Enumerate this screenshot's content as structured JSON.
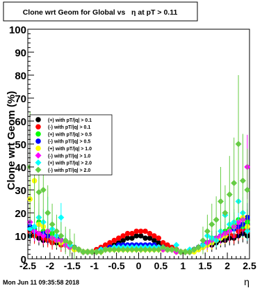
{
  "title": "Clone wrt Geom for Global vs   η at pT > 0.11",
  "timestamp": "Mon Jun 11 09:35:58 2018",
  "colors": {
    "black": "#000000",
    "red": "#ff0000",
    "green": "#00ff00",
    "blue": "#0000ff",
    "yellow": "#ffff00",
    "magenta": "#ff00ff",
    "cyan": "#00ffff",
    "lightgreen": "#66cc44",
    "errorbar_lightgreen": "#7ed957"
  },
  "chart_data": {
    "type": "scatter",
    "xlabel": "η",
    "ylabel": "Clone wrt Geom (%)",
    "xlim": [
      -2.5,
      2.5
    ],
    "ylim": [
      0,
      100
    ],
    "xticks": [
      -2.5,
      -2,
      -1.5,
      -1,
      -0.5,
      0,
      0.5,
      1,
      1.5,
      2,
      2.5
    ],
    "xtick_labels": [
      "-2.5",
      "-2",
      "-1.5",
      "-1",
      "-0.5",
      "0",
      "0.5",
      "1",
      "1.5",
      "2",
      "2.5"
    ],
    "yticks": [
      0,
      10,
      20,
      30,
      40,
      50,
      60,
      70,
      80,
      90,
      100
    ],
    "ytick_labels": [
      "0",
      "10",
      "20",
      "30",
      "40",
      "50",
      "60",
      "70",
      "80",
      "90",
      "100"
    ],
    "grid": false,
    "legend_position": "left-middle",
    "series": [
      {
        "name": "(+) with pT/|q| > 0.1",
        "color": "#000000",
        "marker": "circle",
        "x": [
          -2.45,
          -2.35,
          -2.25,
          -2.15,
          -2.05,
          -1.95,
          -1.85,
          -1.75,
          -1.65,
          -1.55,
          -1.45,
          -1.35,
          -1.25,
          -1.15,
          -1.05,
          -0.95,
          -0.85,
          -0.75,
          -0.65,
          -0.55,
          -0.45,
          -0.35,
          -0.25,
          -0.15,
          -0.05,
          0.05,
          0.15,
          0.25,
          0.35,
          0.45,
          0.55,
          0.65,
          0.75,
          0.85,
          0.95,
          1.05,
          1.15,
          1.25,
          1.35,
          1.45,
          1.55,
          1.65,
          1.75,
          1.85,
          1.95,
          2.05,
          2.15,
          2.25,
          2.35,
          2.45
        ],
        "y": [
          10,
          11,
          9,
          8,
          9,
          8,
          7,
          7,
          6,
          5,
          5,
          4,
          3,
          3,
          3,
          4,
          4,
          4,
          5,
          6,
          7,
          8,
          9,
          9,
          10,
          10,
          9,
          9,
          8,
          7,
          6,
          5,
          4,
          4,
          3,
          3,
          3,
          4,
          4,
          5,
          6,
          6,
          7,
          8,
          8,
          9,
          9,
          10,
          11,
          10
        ]
      },
      {
        "name": "(-) with pT/|q| > 0.1",
        "color": "#ff0000",
        "marker": "circle",
        "x": [
          -2.45,
          -2.35,
          -2.25,
          -2.15,
          -2.05,
          -1.95,
          -1.85,
          -1.75,
          -1.65,
          -1.55,
          -1.45,
          -1.35,
          -1.25,
          -1.15,
          -1.05,
          -0.95,
          -0.85,
          -0.75,
          -0.65,
          -0.55,
          -0.45,
          -0.35,
          -0.25,
          -0.15,
          -0.05,
          0.05,
          0.15,
          0.25,
          0.35,
          0.45,
          0.55,
          0.65,
          0.75,
          0.85,
          0.95,
          1.05,
          1.15,
          1.25,
          1.35,
          1.45,
          1.55,
          1.65,
          1.75,
          1.85,
          1.95,
          2.05,
          2.15,
          2.25,
          2.35,
          2.45
        ],
        "y": [
          12,
          10,
          11,
          9,
          8,
          7,
          8,
          6,
          6,
          5,
          4,
          4,
          3,
          3,
          3,
          4,
          5,
          6,
          7,
          8,
          9,
          10,
          11,
          11,
          12,
          12,
          12,
          11,
          10,
          9,
          7,
          6,
          5,
          4,
          3,
          3,
          3,
          4,
          5,
          5,
          6,
          7,
          8,
          9,
          10,
          11,
          10,
          12,
          13,
          12
        ]
      },
      {
        "name": "(+) with pT/|q| > 0.5",
        "color": "#00ff00",
        "marker": "circle",
        "x": [
          -2.45,
          -2.35,
          -2.25,
          -2.15,
          -2.05,
          -1.95,
          -1.85,
          -1.75,
          -1.65,
          -1.55,
          -1.45,
          -1.35,
          -1.25,
          -1.15,
          -1.05,
          -0.95,
          -0.85,
          -0.75,
          -0.65,
          -0.55,
          -0.45,
          -0.35,
          -0.25,
          -0.15,
          -0.05,
          0.05,
          0.15,
          0.25,
          0.35,
          0.45,
          0.55,
          0.65,
          0.75,
          0.85,
          0.95,
          1.05,
          1.15,
          1.25,
          1.35,
          1.45,
          1.55,
          1.65,
          1.75,
          1.85,
          1.95,
          2.05,
          2.15,
          2.25,
          2.35,
          2.45
        ],
        "y": [
          14,
          13,
          16,
          12,
          10,
          11,
          9,
          8,
          7,
          6,
          5,
          4,
          3,
          3,
          3,
          3,
          4,
          4,
          4,
          5,
          5,
          5,
          5,
          5,
          5,
          5,
          5,
          5,
          5,
          5,
          4,
          4,
          4,
          3,
          3,
          3,
          3,
          4,
          5,
          6,
          7,
          9,
          8,
          10,
          12,
          13,
          15,
          17,
          14,
          16
        ]
      },
      {
        "name": "(-) with pT/|q| > 0.5",
        "color": "#0000ff",
        "marker": "circle",
        "x": [
          -2.45,
          -2.35,
          -2.25,
          -2.15,
          -2.05,
          -1.95,
          -1.85,
          -1.75,
          -1.65,
          -1.55,
          -1.45,
          -1.35,
          -1.25,
          -1.15,
          -1.05,
          -0.95,
          -0.85,
          -0.75,
          -0.65,
          -0.55,
          -0.45,
          -0.35,
          -0.25,
          -0.15,
          -0.05,
          0.05,
          0.15,
          0.25,
          0.35,
          0.45,
          0.55,
          0.65,
          0.75,
          0.85,
          0.95,
          1.05,
          1.15,
          1.25,
          1.35,
          1.45,
          1.55,
          1.65,
          1.75,
          1.85,
          1.95,
          2.05,
          2.15,
          2.25,
          2.35,
          2.45
        ],
        "y": [
          14,
          12,
          15,
          11,
          10,
          9,
          9,
          8,
          6,
          5,
          5,
          4,
          3,
          3,
          3,
          3,
          4,
          4,
          5,
          5,
          6,
          6,
          6,
          6,
          6,
          6,
          6,
          6,
          6,
          5,
          5,
          4,
          4,
          3,
          3,
          3,
          3,
          4,
          5,
          6,
          7,
          8,
          9,
          10,
          11,
          12,
          13,
          14,
          15,
          18
        ]
      },
      {
        "name": "(+) with pT/|q| > 1.0",
        "color": "#ffff00",
        "marker": "circle",
        "x": [
          -2.45,
          -2.35,
          -2.25,
          -2.15,
          -2.05,
          -1.95,
          -1.85,
          -1.75,
          -1.65,
          -1.55,
          -1.45,
          -1.35,
          -1.25,
          -1.15,
          -1.05,
          -0.95,
          -0.85,
          -0.75,
          -0.65,
          -0.55,
          -0.45,
          -0.35,
          -0.25,
          -0.15,
          -0.05,
          0.05,
          0.15,
          0.25,
          0.35,
          0.45,
          0.55,
          0.65,
          0.75,
          0.85,
          0.95,
          1.05,
          1.15,
          1.25,
          1.35,
          1.45,
          1.55,
          1.65,
          1.75,
          1.85,
          1.95,
          2.05,
          2.15,
          2.25,
          2.35,
          2.45
        ],
        "y": [
          26,
          34,
          15,
          14,
          12,
          9,
          8,
          7,
          6,
          5,
          4,
          4,
          3,
          3,
          3,
          3,
          3,
          4,
          4,
          4,
          4,
          4,
          4,
          4,
          4,
          4,
          4,
          4,
          4,
          4,
          4,
          4,
          4,
          3,
          3,
          3,
          3,
          3,
          4,
          5,
          6,
          7,
          8,
          9,
          10,
          12,
          14,
          16,
          18,
          14
        ]
      },
      {
        "name": "(-) with pT/|q| > 1.0",
        "color": "#ff00ff",
        "marker": "diamond",
        "x": [
          -2.45,
          -2.35,
          -2.25,
          -2.15,
          -2.05,
          -1.95,
          -1.85,
          -1.75,
          -1.65,
          -1.55,
          -1.45,
          -1.35,
          -1.25,
          -1.15,
          -1.05,
          -0.95,
          -0.85,
          -0.75,
          -0.65,
          -0.55,
          -0.45,
          -0.35,
          -0.25,
          -0.15,
          -0.05,
          0.05,
          0.15,
          0.25,
          0.35,
          0.45,
          0.55,
          0.65,
          0.75,
          0.85,
          0.95,
          1.05,
          1.15,
          1.25,
          1.35,
          1.45,
          1.55,
          1.65,
          1.75,
          1.85,
          1.95,
          2.05,
          2.15,
          2.25,
          2.35,
          2.45
        ],
        "y": [
          16,
          12,
          11,
          10,
          12,
          9,
          8,
          8,
          6,
          5,
          5,
          4,
          3,
          3,
          3,
          3,
          4,
          4,
          4,
          5,
          5,
          5,
          5,
          5,
          5,
          5,
          5,
          5,
          5,
          5,
          4,
          4,
          4,
          3,
          3,
          3,
          3,
          4,
          5,
          6,
          7,
          8,
          9,
          10,
          11,
          12,
          14,
          16,
          17,
          40
        ]
      },
      {
        "name": "(+) with pT/|q| > 2.0",
        "color": "#00ffff",
        "marker": "diamond",
        "x": [
          -2.45,
          -2.35,
          -2.25,
          -2.15,
          -2.05,
          -1.95,
          -1.85,
          -1.75,
          -1.65,
          -1.55,
          -1.45,
          -1.35,
          -1.25,
          -1.15,
          -1.05,
          -0.95,
          -0.85,
          -0.75,
          -0.65,
          -0.55,
          -0.45,
          -0.35,
          -0.25,
          -0.15,
          -0.05,
          0.05,
          0.15,
          0.25,
          0.35,
          0.45,
          0.55,
          0.65,
          0.75,
          0.85,
          0.95,
          1.05,
          1.15,
          1.25,
          1.35,
          1.45,
          1.55,
          1.65,
          1.75,
          1.85,
          1.95,
          2.05,
          2.15,
          2.25,
          2.35,
          2.45
        ],
        "y": [
          13,
          14,
          18,
          16,
          20,
          13,
          10,
          18,
          8,
          6,
          5,
          4,
          3,
          3,
          3,
          3,
          4,
          4,
          4,
          5,
          5,
          5,
          5,
          5,
          5,
          5,
          5,
          5,
          5,
          5,
          5,
          4,
          4,
          6,
          3,
          3,
          4,
          4,
          5,
          6,
          10,
          9,
          8,
          12,
          19,
          15,
          16,
          25,
          20,
          12
        ]
      },
      {
        "name": "(-) with pT/|q| > 2.0",
        "color": "#66cc44",
        "marker": "diamond",
        "x": [
          -2.45,
          -2.35,
          -2.25,
          -2.15,
          -2.05,
          -1.95,
          -1.85,
          -1.75,
          -1.65,
          -1.55,
          -1.45,
          -1.35,
          -1.25,
          -1.15,
          -1.05,
          -0.95,
          -0.85,
          -0.75,
          -0.65,
          -0.55,
          -0.45,
          -0.35,
          -0.25,
          -0.15,
          -0.05,
          0.05,
          0.15,
          0.25,
          0.35,
          0.45,
          0.55,
          0.65,
          0.75,
          0.85,
          0.95,
          1.05,
          1.15,
          1.25,
          1.35,
          1.45,
          1.55,
          1.65,
          1.75,
          1.85,
          1.95,
          2.05,
          2.15,
          2.25,
          2.35,
          2.45
        ],
        "y": [
          40,
          39,
          29,
          30,
          20,
          15,
          12,
          10,
          8,
          7,
          5,
          4,
          3,
          3,
          3,
          3,
          3,
          4,
          4,
          4,
          4,
          4,
          4,
          4,
          4,
          4,
          4,
          4,
          4,
          4,
          5,
          4,
          4,
          4,
          3,
          3,
          3,
          4,
          5,
          8,
          12,
          15,
          17,
          25,
          20,
          28,
          33,
          50,
          34,
          30
        ]
      }
    ],
    "error_bars_on": "(-) with pT/|q| > 2.0"
  }
}
